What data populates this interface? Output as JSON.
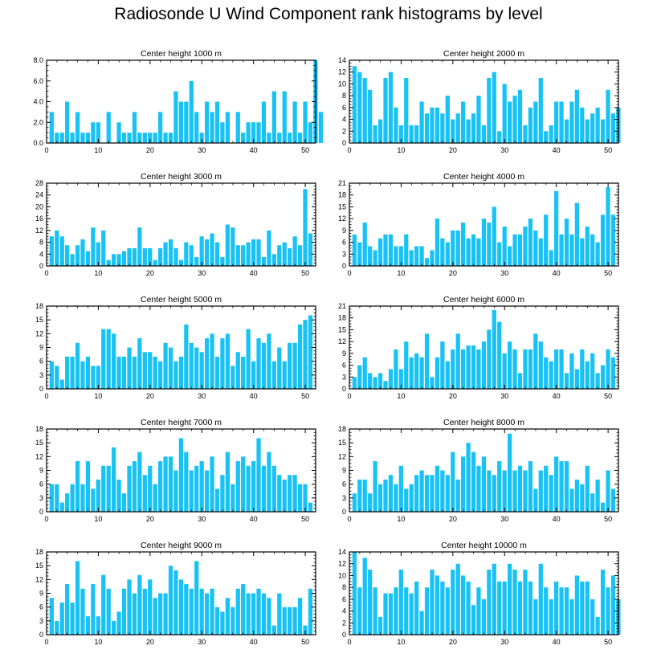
{
  "figure": {
    "title": "Radiosonde U Wind Component rank histograms by level",
    "bar_color": "#18c2f5"
  },
  "chart_data": [
    {
      "type": "bar",
      "title": "Center height 1000 m",
      "x": {
        "range": [
          0,
          52
        ],
        "ticks": [
          0,
          10,
          20,
          30,
          40,
          50
        ]
      },
      "y": {
        "range": [
          0,
          8
        ],
        "ticks": [
          0,
          2,
          4,
          6,
          8
        ],
        "tick_labels": [
          "0.0",
          "2.0",
          "4.0",
          "6.0",
          "8.0"
        ]
      },
      "values": [
        3,
        1,
        1,
        4,
        1,
        3,
        1,
        1,
        2,
        2,
        0,
        3,
        0,
        2,
        1,
        1,
        3,
        1,
        1,
        1,
        1,
        3,
        1,
        1,
        5,
        4,
        4,
        6,
        3,
        1,
        4,
        3,
        4,
        2,
        3,
        0,
        3,
        1,
        2,
        2,
        2,
        4,
        1,
        5,
        1,
        5,
        1,
        4,
        1,
        4,
        2,
        8,
        3
      ]
    },
    {
      "type": "bar",
      "title": "Center height 2000 m",
      "x": {
        "range": [
          0,
          52
        ],
        "ticks": [
          0,
          10,
          20,
          30,
          40,
          50
        ]
      },
      "y": {
        "range": [
          0,
          14
        ],
        "ticks": [
          0,
          2,
          4,
          6,
          8,
          10,
          12,
          14
        ],
        "tick_labels": [
          "0",
          "2",
          "4",
          "6",
          "8",
          "10",
          "12",
          "14"
        ]
      },
      "values": [
        13,
        12,
        11,
        9,
        3,
        4,
        11,
        12,
        6,
        3,
        11,
        3,
        3,
        7,
        5,
        6,
        6,
        5,
        8,
        4,
        5,
        7,
        4,
        5,
        8,
        3,
        11,
        12,
        2,
        10,
        7,
        8,
        9,
        3,
        6,
        7,
        11,
        2,
        3,
        7,
        7,
        4,
        7,
        9,
        6,
        4,
        5,
        6,
        4,
        9,
        5,
        6
      ]
    },
    {
      "type": "bar",
      "title": "Center height 3000 m",
      "x": {
        "range": [
          0,
          52
        ],
        "ticks": [
          0,
          10,
          20,
          30,
          40,
          50
        ]
      },
      "y": {
        "range": [
          0,
          28
        ],
        "ticks": [
          0,
          4,
          8,
          12,
          16,
          20,
          24,
          28
        ],
        "tick_labels": [
          "0",
          "4",
          "8",
          "12",
          "16",
          "20",
          "24",
          "28"
        ]
      },
      "values": [
        10,
        12,
        10,
        7,
        4,
        7,
        9,
        5,
        13,
        8,
        12,
        2,
        4,
        4,
        5,
        6,
        6,
        13,
        6,
        6,
        2,
        6,
        8,
        9,
        6,
        2,
        8,
        7,
        3,
        10,
        9,
        11,
        8,
        3,
        14,
        13,
        7,
        7,
        8,
        9,
        9,
        3,
        12,
        4,
        7,
        8,
        6,
        10,
        7,
        26,
        11
      ]
    },
    {
      "type": "bar",
      "title": "Center height 4000 m",
      "x": {
        "range": [
          0,
          52
        ],
        "ticks": [
          0,
          10,
          20,
          30,
          40,
          50
        ]
      },
      "y": {
        "range": [
          0,
          21
        ],
        "ticks": [
          0,
          3,
          6,
          9,
          12,
          15,
          18,
          21
        ],
        "tick_labels": [
          "0",
          "3",
          "6",
          "9",
          "12",
          "15",
          "18",
          "21"
        ]
      },
      "values": [
        8,
        6,
        11,
        5,
        4,
        7,
        8,
        8,
        5,
        5,
        8,
        4,
        5,
        5,
        2,
        4,
        12,
        7,
        6,
        9,
        9,
        11,
        7,
        8,
        7,
        12,
        11,
        15,
        6,
        10,
        5,
        8,
        8,
        10,
        12,
        9,
        7,
        13,
        4,
        19,
        8,
        12,
        8,
        16,
        7,
        10,
        8,
        6,
        13,
        20,
        13
      ]
    },
    {
      "type": "bar",
      "title": "Center height 5000 m",
      "x": {
        "range": [
          0,
          52
        ],
        "ticks": [
          0,
          10,
          20,
          30,
          40,
          50
        ]
      },
      "y": {
        "range": [
          0,
          18
        ],
        "ticks": [
          0,
          3,
          6,
          9,
          12,
          15,
          18
        ],
        "tick_labels": [
          "0",
          "3",
          "6",
          "9",
          "12",
          "15",
          "18"
        ]
      },
      "values": [
        6,
        5,
        2,
        7,
        7,
        10,
        6,
        7,
        5,
        5,
        13,
        13,
        12,
        7,
        7,
        9,
        7,
        11,
        8,
        8,
        7,
        6,
        10,
        9,
        6,
        7,
        14,
        10,
        9,
        8,
        11,
        12,
        7,
        11,
        12,
        5,
        8,
        7,
        13,
        6,
        11,
        10,
        12,
        6,
        9,
        6,
        10,
        10,
        14,
        15,
        16
      ]
    },
    {
      "type": "bar",
      "title": "Center height 6000 m",
      "x": {
        "range": [
          0,
          52
        ],
        "ticks": [
          0,
          10,
          20,
          30,
          40,
          50
        ]
      },
      "y": {
        "range": [
          0,
          21
        ],
        "ticks": [
          0,
          3,
          6,
          9,
          12,
          15,
          18,
          21
        ],
        "tick_labels": [
          "0",
          "3",
          "6",
          "9",
          "12",
          "15",
          "18",
          "21"
        ]
      },
      "values": [
        3,
        6,
        8,
        4,
        3,
        4,
        2,
        5,
        10,
        5,
        12,
        8,
        9,
        8,
        14,
        3,
        8,
        12,
        7,
        10,
        14,
        10,
        11,
        11,
        10,
        12,
        15,
        20,
        17,
        9,
        12,
        10,
        4,
        10,
        10,
        14,
        12,
        8,
        7,
        10,
        10,
        4,
        9,
        5,
        10,
        7,
        9,
        4,
        6,
        10,
        8
      ]
    },
    {
      "type": "bar",
      "title": "Center height 7000 m",
      "x": {
        "range": [
          0,
          52
        ],
        "ticks": [
          0,
          10,
          20,
          30,
          40,
          50
        ]
      },
      "y": {
        "range": [
          0,
          18
        ],
        "ticks": [
          0,
          3,
          6,
          9,
          12,
          15,
          18
        ],
        "tick_labels": [
          "0",
          "3",
          "6",
          "9",
          "12",
          "15",
          "18"
        ]
      },
      "values": [
        6,
        6,
        2,
        4,
        6,
        11,
        6,
        11,
        5,
        7,
        10,
        10,
        14,
        7,
        4,
        10,
        11,
        13,
        8,
        10,
        6,
        11,
        12,
        12,
        9,
        16,
        13,
        9,
        10,
        11,
        9,
        12,
        5,
        8,
        13,
        6,
        11,
        12,
        10,
        11,
        16,
        10,
        13,
        10,
        8,
        7,
        8,
        8,
        6,
        6,
        2
      ]
    },
    {
      "type": "bar",
      "title": "Center height 8000 m",
      "x": {
        "range": [
          0,
          52
        ],
        "ticks": [
          0,
          10,
          20,
          30,
          40,
          50
        ]
      },
      "y": {
        "range": [
          0,
          18
        ],
        "ticks": [
          0,
          3,
          6,
          9,
          12,
          15,
          18
        ],
        "tick_labels": [
          "0",
          "3",
          "6",
          "9",
          "12",
          "15",
          "18"
        ]
      },
      "values": [
        4,
        7,
        7,
        4,
        11,
        6,
        7,
        8,
        6,
        10,
        5,
        6,
        8,
        9,
        8,
        8,
        10,
        9,
        8,
        13,
        7,
        12,
        15,
        13,
        10,
        12,
        9,
        8,
        11,
        9,
        17,
        9,
        10,
        9,
        11,
        5,
        9,
        10,
        8,
        12,
        11,
        11,
        5,
        7,
        6,
        10,
        4,
        7,
        2,
        9,
        5
      ]
    },
    {
      "type": "bar",
      "title": "Center height 9000 m",
      "x": {
        "range": [
          0,
          52
        ],
        "ticks": [
          0,
          10,
          20,
          30,
          40,
          50
        ]
      },
      "y": {
        "range": [
          0,
          18
        ],
        "ticks": [
          0,
          3,
          6,
          9,
          12,
          15,
          18
        ],
        "tick_labels": [
          "0",
          "3",
          "6",
          "9",
          "12",
          "15",
          "18"
        ]
      },
      "values": [
        8,
        3,
        7,
        11,
        7,
        16,
        10,
        4,
        11,
        4,
        13,
        10,
        3,
        5,
        10,
        12,
        9,
        13,
        10,
        12,
        8,
        9,
        9,
        15,
        14,
        12,
        11,
        10,
        16,
        10,
        9,
        10,
        6,
        5,
        8,
        6,
        10,
        11,
        9,
        9,
        10,
        9,
        8,
        2,
        9,
        6,
        6,
        6,
        8,
        2,
        10
      ]
    },
    {
      "type": "bar",
      "title": "Center height 10000 m",
      "x": {
        "range": [
          0,
          52
        ],
        "ticks": [
          0,
          10,
          20,
          30,
          40,
          50
        ]
      },
      "y": {
        "range": [
          0,
          14
        ],
        "ticks": [
          0,
          2,
          4,
          6,
          8,
          10,
          12,
          14
        ],
        "tick_labels": [
          "0",
          "2",
          "4",
          "6",
          "8",
          "10",
          "12",
          "14"
        ]
      },
      "values": [
        14,
        8,
        13,
        11,
        8,
        3,
        7,
        7,
        8,
        11,
        8,
        7,
        9,
        4,
        8,
        11,
        10,
        9,
        8,
        11,
        12,
        10,
        9,
        5,
        8,
        6,
        11,
        12,
        9,
        9,
        12,
        11,
        9,
        11,
        9,
        6,
        12,
        8,
        6,
        9,
        8,
        8,
        6,
        10,
        9,
        9,
        6,
        3,
        11,
        8,
        10,
        6
      ]
    }
  ]
}
